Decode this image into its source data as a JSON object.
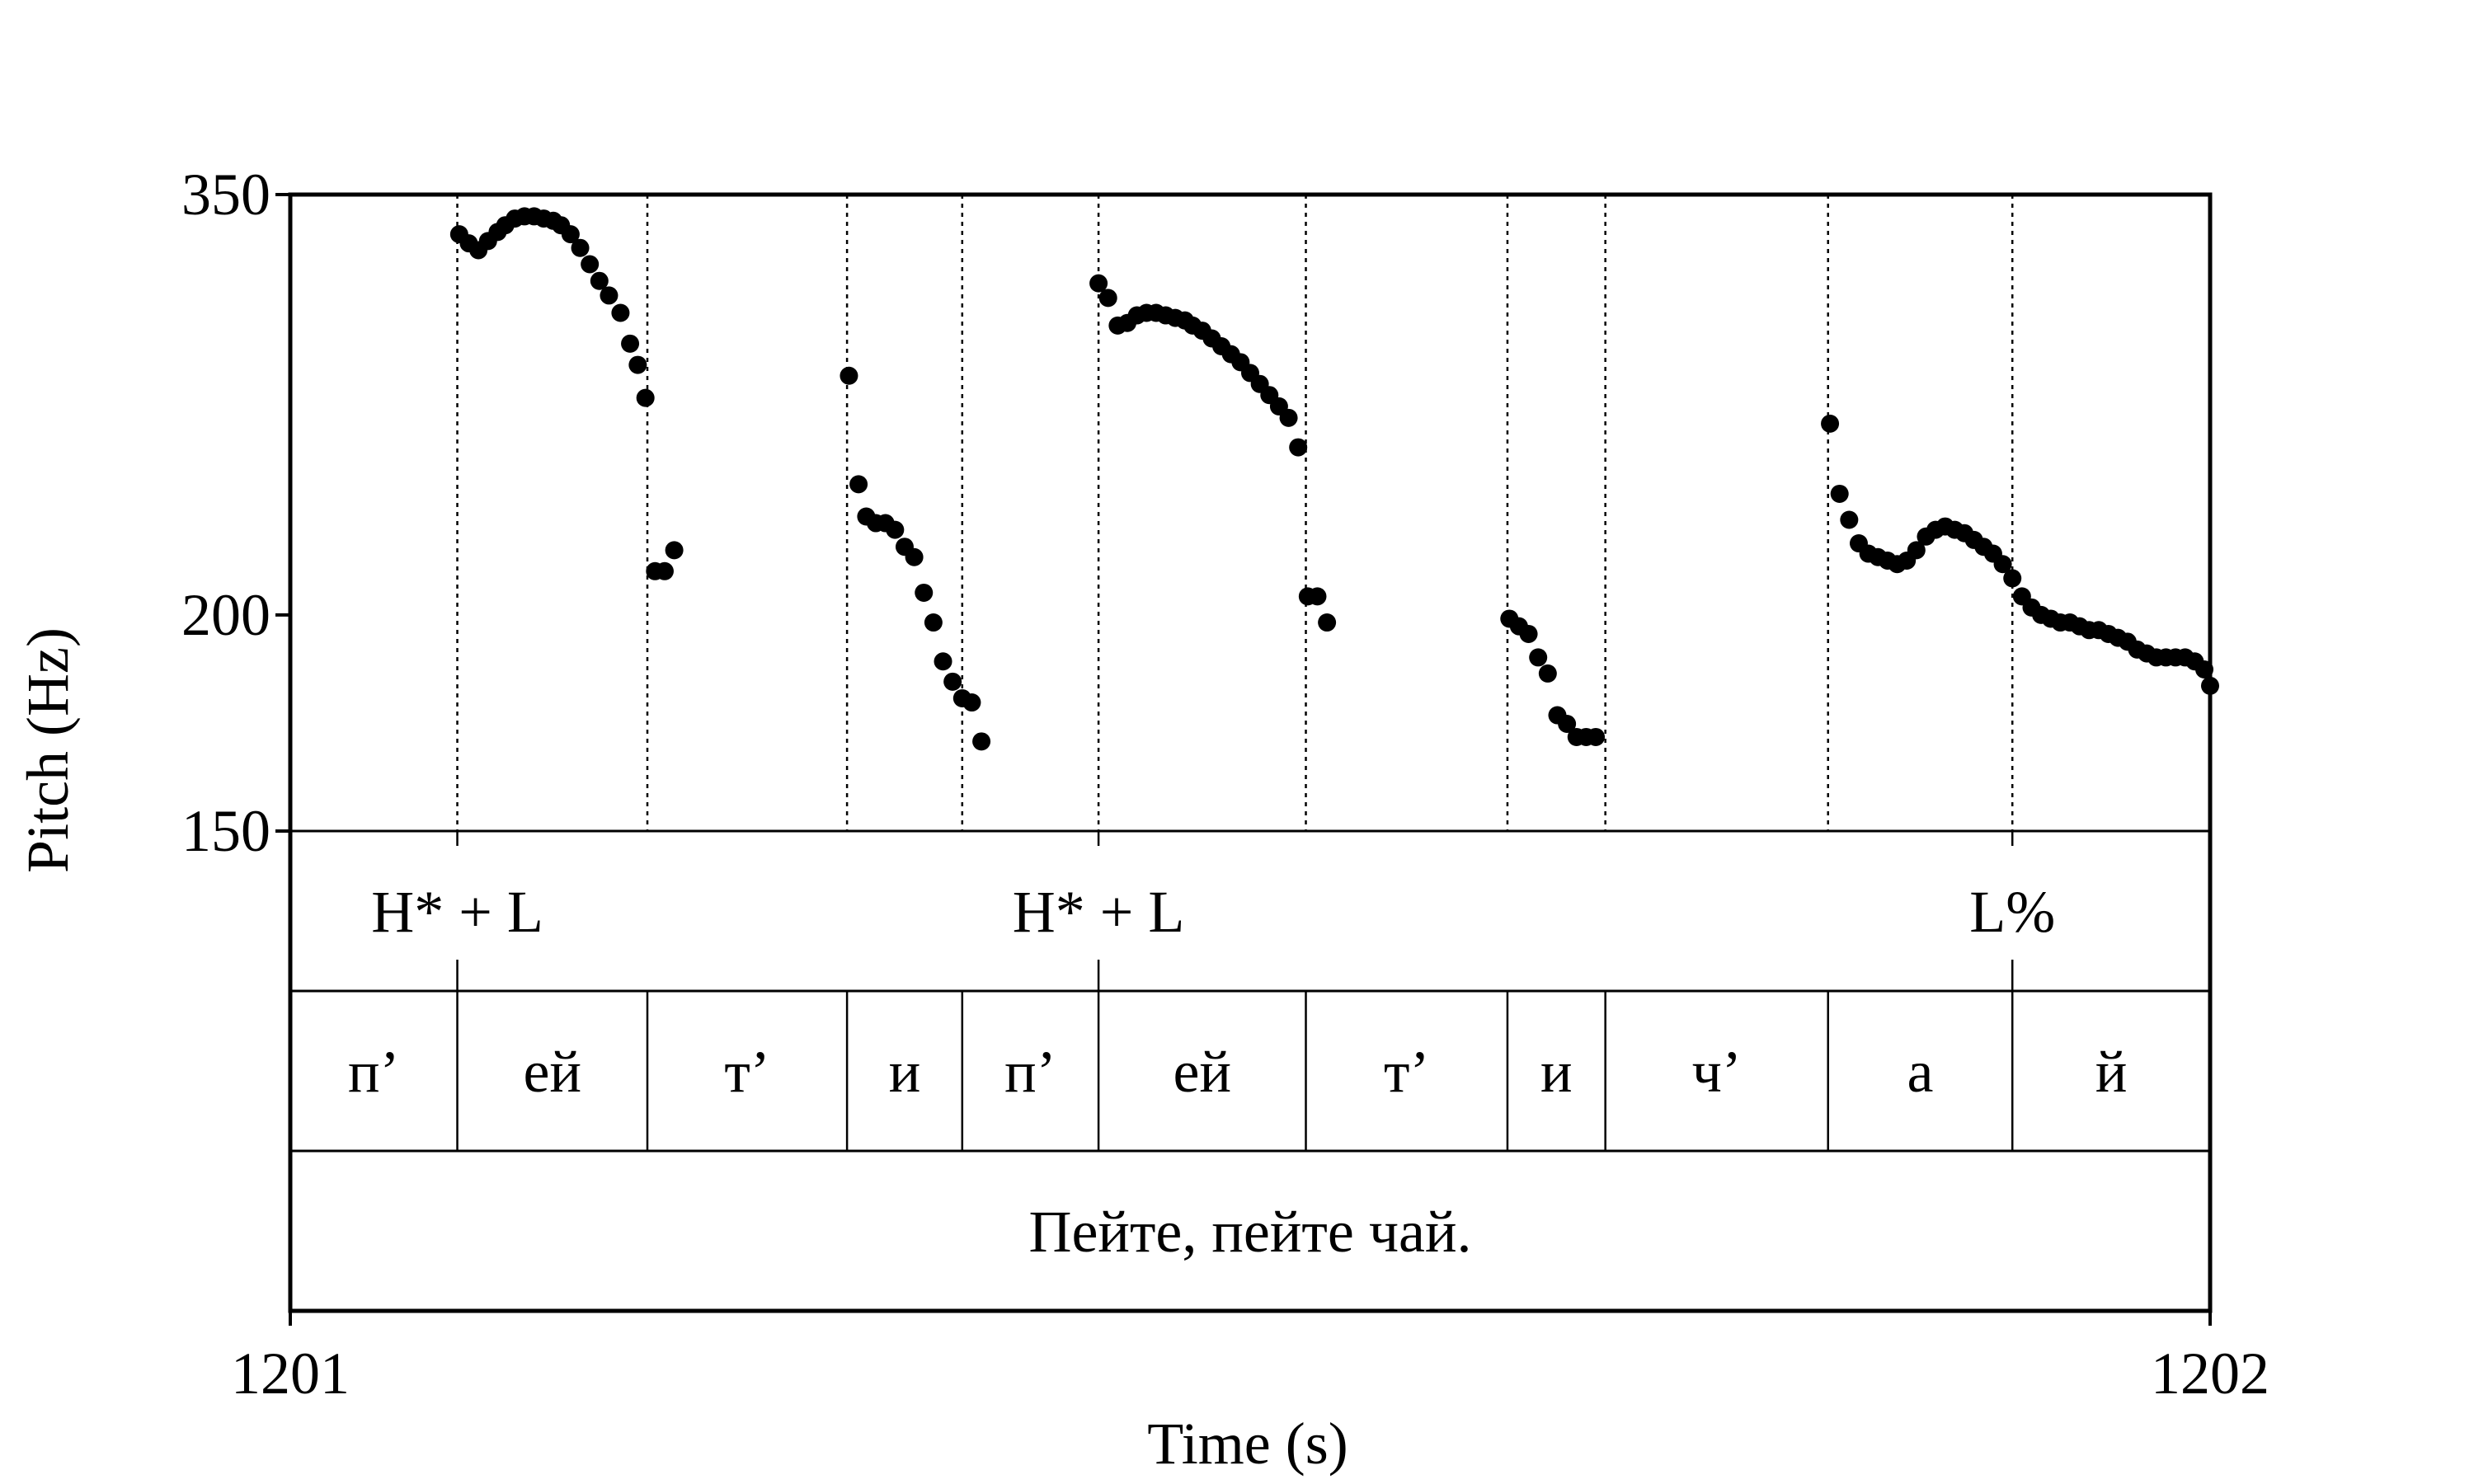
{
  "chart_data": {
    "type": "scatter",
    "title": "",
    "xlabel": "Time (s)",
    "ylabel": "Pitch (Hz)",
    "xlim": [
      1201,
      1202
    ],
    "ylim": [
      150,
      350
    ],
    "y_scale": "log",
    "grid": false,
    "x_ticks": [
      {
        "value": 1201,
        "label": "1201"
      },
      {
        "value": 1202,
        "label": "1202"
      }
    ],
    "y_ticks": [
      {
        "value": 150,
        "label": "150"
      },
      {
        "value": 200,
        "label": "200"
      },
      {
        "value": 350,
        "label": "350"
      }
    ],
    "segment_boundaries": [
      1201.087,
      1201.186,
      1201.29,
      1201.35,
      1201.421,
      1201.529,
      1201.634,
      1201.685,
      1201.801,
      1201.897
    ],
    "tiers": [
      {
        "name": "tones",
        "labels": [
          {
            "time": 1201.087,
            "text": "H* + L"
          },
          {
            "time": 1201.421,
            "text": "H* + L"
          },
          {
            "time": 1201.897,
            "text": "L%"
          }
        ]
      },
      {
        "name": "segments",
        "intervals": [
          {
            "start": 1201.0,
            "end": 1201.087,
            "text": "п’"
          },
          {
            "start": 1201.087,
            "end": 1201.186,
            "text": "ей"
          },
          {
            "start": 1201.186,
            "end": 1201.29,
            "text": "т’"
          },
          {
            "start": 1201.29,
            "end": 1201.35,
            "text": "и"
          },
          {
            "start": 1201.35,
            "end": 1201.421,
            "text": "п’"
          },
          {
            "start": 1201.421,
            "end": 1201.529,
            "text": "ей"
          },
          {
            "start": 1201.529,
            "end": 1201.634,
            "text": "т’"
          },
          {
            "start": 1201.634,
            "end": 1201.685,
            "text": "и"
          },
          {
            "start": 1201.685,
            "end": 1201.801,
            "text": "ч’"
          },
          {
            "start": 1201.801,
            "end": 1201.897,
            "text": "а"
          },
          {
            "start": 1201.897,
            "end": 1202.0,
            "text": "й"
          }
        ]
      },
      {
        "name": "utterance",
        "intervals": [
          {
            "start": 1201.0,
            "end": 1202.0,
            "text": "Пейте, пейте чай."
          }
        ]
      }
    ],
    "series": [
      {
        "marker": "dot",
        "color": "#000000",
        "points": [
          [
            1201.088,
            332
          ],
          [
            1201.093,
            328
          ],
          [
            1201.098,
            325
          ],
          [
            1201.103,
            329
          ],
          [
            1201.108,
            333
          ],
          [
            1201.112,
            336
          ],
          [
            1201.117,
            339
          ],
          [
            1201.122,
            340
          ],
          [
            1201.127,
            340
          ],
          [
            1201.132,
            339
          ],
          [
            1201.137,
            338
          ],
          [
            1201.141,
            336
          ],
          [
            1201.146,
            332
          ],
          [
            1201.151,
            326
          ],
          [
            1201.156,
            319
          ],
          [
            1201.161,
            312
          ],
          [
            1201.166,
            306
          ],
          [
            1201.172,
            299
          ],
          [
            1201.177,
            287
          ],
          [
            1201.181,
            279
          ],
          [
            1201.185,
            267
          ],
          [
            1201.19,
            212
          ],
          [
            1201.195,
            212
          ],
          [
            1201.2,
            218
          ],
          [
            1201.291,
            275
          ],
          [
            1201.296,
            238
          ],
          [
            1201.3,
            228
          ],
          [
            1201.305,
            226
          ],
          [
            1201.31,
            226
          ],
          [
            1201.315,
            224
          ],
          [
            1201.32,
            219
          ],
          [
            1201.325,
            216
          ],
          [
            1201.33,
            206
          ],
          [
            1201.335,
            198
          ],
          [
            1201.34,
            188
          ],
          [
            1201.345,
            183
          ],
          [
            1201.35,
            179
          ],
          [
            1201.355,
            178
          ],
          [
            1201.36,
            169
          ],
          [
            1201.421,
            311
          ],
          [
            1201.426,
            305
          ],
          [
            1201.431,
            294
          ],
          [
            1201.436,
            295
          ],
          [
            1201.441,
            298
          ],
          [
            1201.446,
            299
          ],
          [
            1201.451,
            299
          ],
          [
            1201.456,
            298
          ],
          [
            1201.461,
            297
          ],
          [
            1201.466,
            296
          ],
          [
            1201.47,
            294
          ],
          [
            1201.475,
            292
          ],
          [
            1201.48,
            289
          ],
          [
            1201.485,
            286
          ],
          [
            1201.49,
            283
          ],
          [
            1201.495,
            280
          ],
          [
            1201.5,
            276
          ],
          [
            1201.505,
            272
          ],
          [
            1201.51,
            268
          ],
          [
            1201.515,
            264
          ],
          [
            1201.52,
            260
          ],
          [
            1201.525,
            250
          ],
          [
            1201.53,
            205
          ],
          [
            1201.535,
            205
          ],
          [
            1201.54,
            198
          ],
          [
            1201.635,
            199
          ],
          [
            1201.64,
            197
          ],
          [
            1201.645,
            195
          ],
          [
            1201.65,
            189
          ],
          [
            1201.655,
            185
          ],
          [
            1201.66,
            175
          ],
          [
            1201.665,
            173
          ],
          [
            1201.67,
            170
          ],
          [
            1201.675,
            170
          ],
          [
            1201.68,
            170
          ],
          [
            1201.802,
            258
          ],
          [
            1201.807,
            235
          ],
          [
            1201.812,
            227
          ],
          [
            1201.817,
            220
          ],
          [
            1201.822,
            217
          ],
          [
            1201.827,
            216
          ],
          [
            1201.832,
            215
          ],
          [
            1201.837,
            214
          ],
          [
            1201.842,
            215
          ],
          [
            1201.847,
            218
          ],
          [
            1201.852,
            222
          ],
          [
            1201.857,
            224
          ],
          [
            1201.862,
            225
          ],
          [
            1201.867,
            224
          ],
          [
            1201.872,
            223
          ],
          [
            1201.877,
            221
          ],
          [
            1201.882,
            219
          ],
          [
            1201.887,
            217
          ],
          [
            1201.892,
            214
          ],
          [
            1201.897,
            210
          ],
          [
            1201.902,
            205
          ],
          [
            1201.907,
            202
          ],
          [
            1201.912,
            200
          ],
          [
            1201.917,
            199
          ],
          [
            1201.922,
            198
          ],
          [
            1201.927,
            198
          ],
          [
            1201.932,
            197
          ],
          [
            1201.937,
            196
          ],
          [
            1201.942,
            196
          ],
          [
            1201.947,
            195
          ],
          [
            1201.952,
            194
          ],
          [
            1201.957,
            193
          ],
          [
            1201.962,
            191
          ],
          [
            1201.967,
            190
          ],
          [
            1201.972,
            189
          ],
          [
            1201.977,
            189
          ],
          [
            1201.982,
            189
          ],
          [
            1201.987,
            189
          ],
          [
            1201.992,
            188
          ],
          [
            1201.997,
            186
          ],
          [
            1202.0,
            182
          ]
        ]
      }
    ]
  }
}
